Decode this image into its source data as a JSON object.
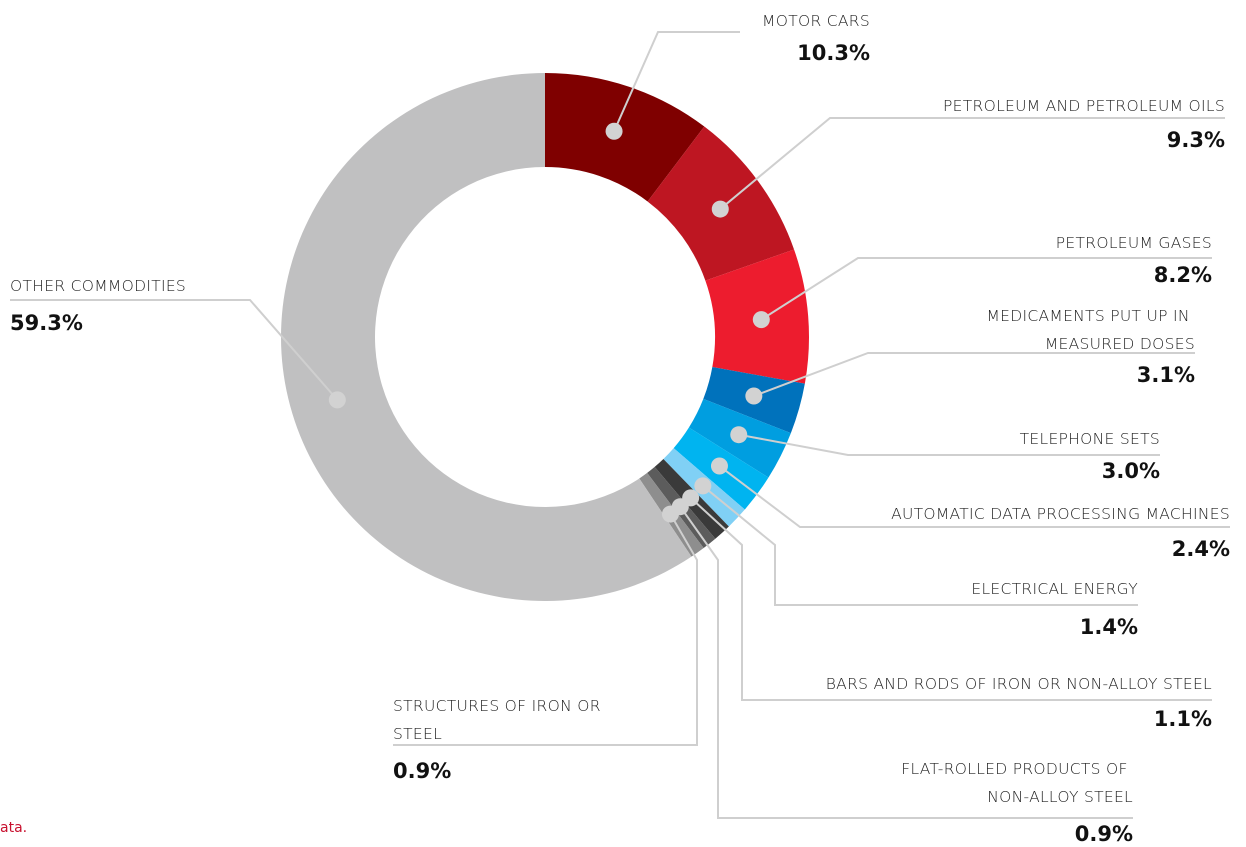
{
  "chart_data": {
    "type": "donut",
    "categories": [
      "MOTOR CARS",
      "PETROLEUM AND PETROLEUM OILS",
      "PETROLEUM GASES",
      "MEDICAMENTS PUT UP IN MEASURED DOSES",
      "TELEPHONE SETS",
      "AUTOMATIC DATA PROCESSING MACHINES",
      "ELECTRICAL ENERGY",
      "BARS AND RODS OF IRON OR NON-ALLOY STEEL",
      "FLAT-ROLLED PRODUCTS OF NON-ALLOY STEEL",
      "STRUCTURES OF IRON OR STEEL",
      "OTHER COMMODITIES"
    ],
    "values": [
      10.3,
      9.3,
      8.2,
      3.1,
      3.0,
      2.4,
      1.4,
      1.1,
      0.9,
      0.9,
      59.3
    ],
    "value_labels": [
      "10.3%",
      "9.3%",
      "8.2%",
      "3.1%",
      "3.0%",
      "2.4%",
      "1.4%",
      "1.1%",
      "0.9%",
      "0.9%",
      "59.3%"
    ],
    "colors": [
      "#7f0000",
      "#be1622",
      "#ed1c2e",
      "#0072bc",
      "#009ee0",
      "#00b4f0",
      "#80d0f5",
      "#3a3a3a",
      "#5c5c5c",
      "#8e8e8e",
      "#c0c0c1"
    ],
    "note": "ata."
  }
}
